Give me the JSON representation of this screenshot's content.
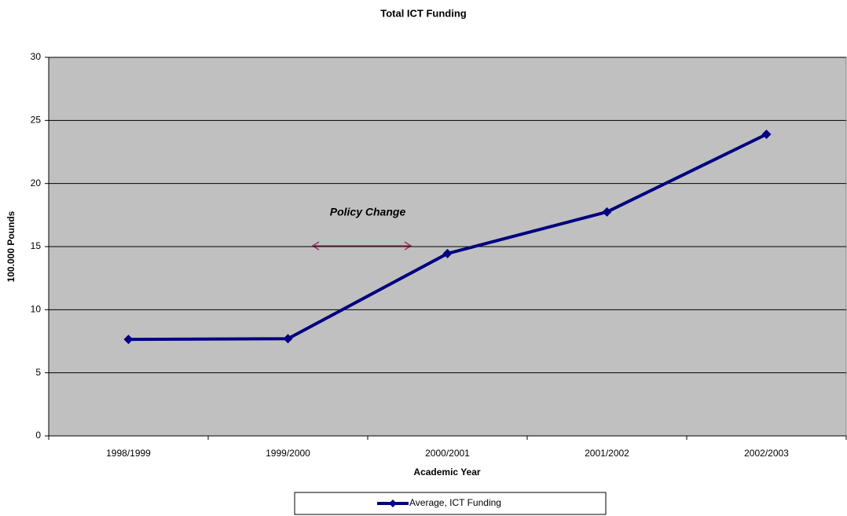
{
  "chart_data": {
    "type": "line",
    "title": "Total ICT Funding",
    "x_label": "Academic Year",
    "y_label": "100.000 Pounds",
    "categories": [
      "1998/1999",
      "1999/2000",
      "2000/2001",
      "2001/2002",
      "2002/2003"
    ],
    "series": [
      {
        "name": "Average, ICT Funding",
        "color": "#000080",
        "values": [
          7.65,
          7.7,
          14.45,
          17.75,
          23.9
        ]
      }
    ],
    "ylim": [
      0,
      30
    ],
    "yticks": [
      0,
      5,
      10,
      15,
      20,
      25,
      30
    ],
    "grid": true,
    "annotation": "Policy Change",
    "legend": "bottom"
  }
}
